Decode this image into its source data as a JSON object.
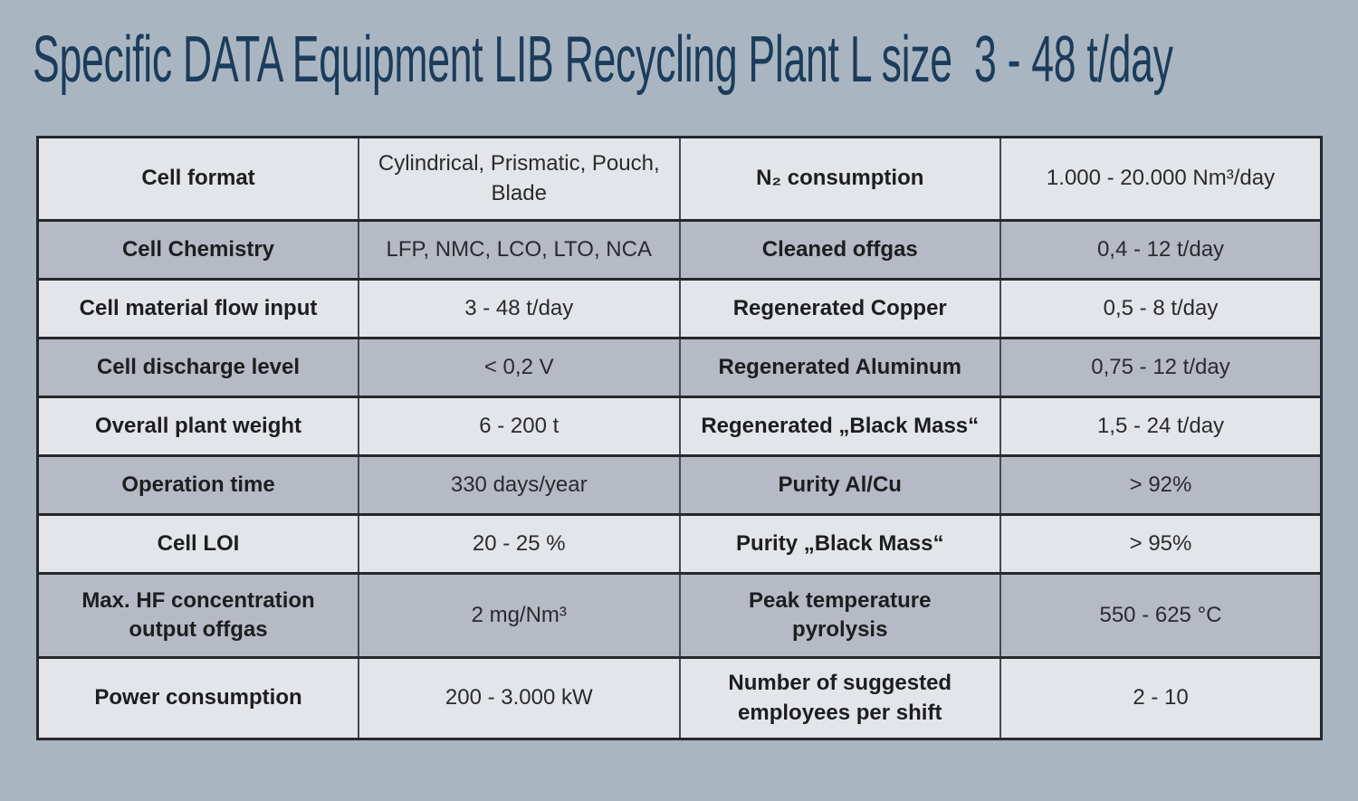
{
  "title": "Specific DATA Equipment LIB Recycling Plant L size  3 - 48 t/day",
  "colors": {
    "page_bg": "#a9b6c1",
    "row_light": "#e4e5ea",
    "row_dark": "#b6bac5",
    "border_horizontal": "#26282c",
    "border_vertical": "#46494f",
    "title": "#1c3c5b",
    "label_text": "#1d1e20",
    "value_text": "#2a2b2f"
  },
  "table": {
    "rows": [
      {
        "label_left": "Cell format",
        "value_left": "Cylindrical, Prismatic, Pouch, Blade",
        "label_right": "N₂ consumption",
        "value_right": "1.000 - 20.000 Nm³/day"
      },
      {
        "label_left": "Cell Chemistry",
        "value_left": "LFP, NMC, LCO, LTO, NCA",
        "label_right": "Cleaned offgas",
        "value_right": "0,4 - 12 t/day"
      },
      {
        "label_left": "Cell material flow input",
        "value_left": "3 - 48 t/day",
        "label_right": "Regenerated Copper",
        "value_right": "0,5 - 8 t/day"
      },
      {
        "label_left": "Cell discharge level",
        "value_left": "< 0,2 V",
        "label_right": "Regenerated Aluminum",
        "value_right": "0,75 - 12 t/day"
      },
      {
        "label_left": "Overall plant weight",
        "value_left": "6 - 200 t",
        "label_right": "Regenerated „Black Mass“",
        "value_right": "1,5 - 24 t/day"
      },
      {
        "label_left": "Operation time",
        "value_left": "330 days/year",
        "label_right": "Purity Al/Cu",
        "value_right": "> 92%"
      },
      {
        "label_left": "Cell LOI",
        "value_left": "20 - 25 %",
        "label_right": "Purity „Black Mass“",
        "value_right": "> 95%"
      },
      {
        "label_left": "Max. HF concentration output offgas",
        "value_left": "2 mg/Nm³",
        "label_right": "Peak temperature pyrolysis",
        "value_right": "550 - 625 °C"
      },
      {
        "label_left": "Power consumption",
        "value_left": "200 - 3.000 kW",
        "label_right": "Number of suggested employees per shift",
        "value_right": "2 - 10"
      }
    ]
  }
}
